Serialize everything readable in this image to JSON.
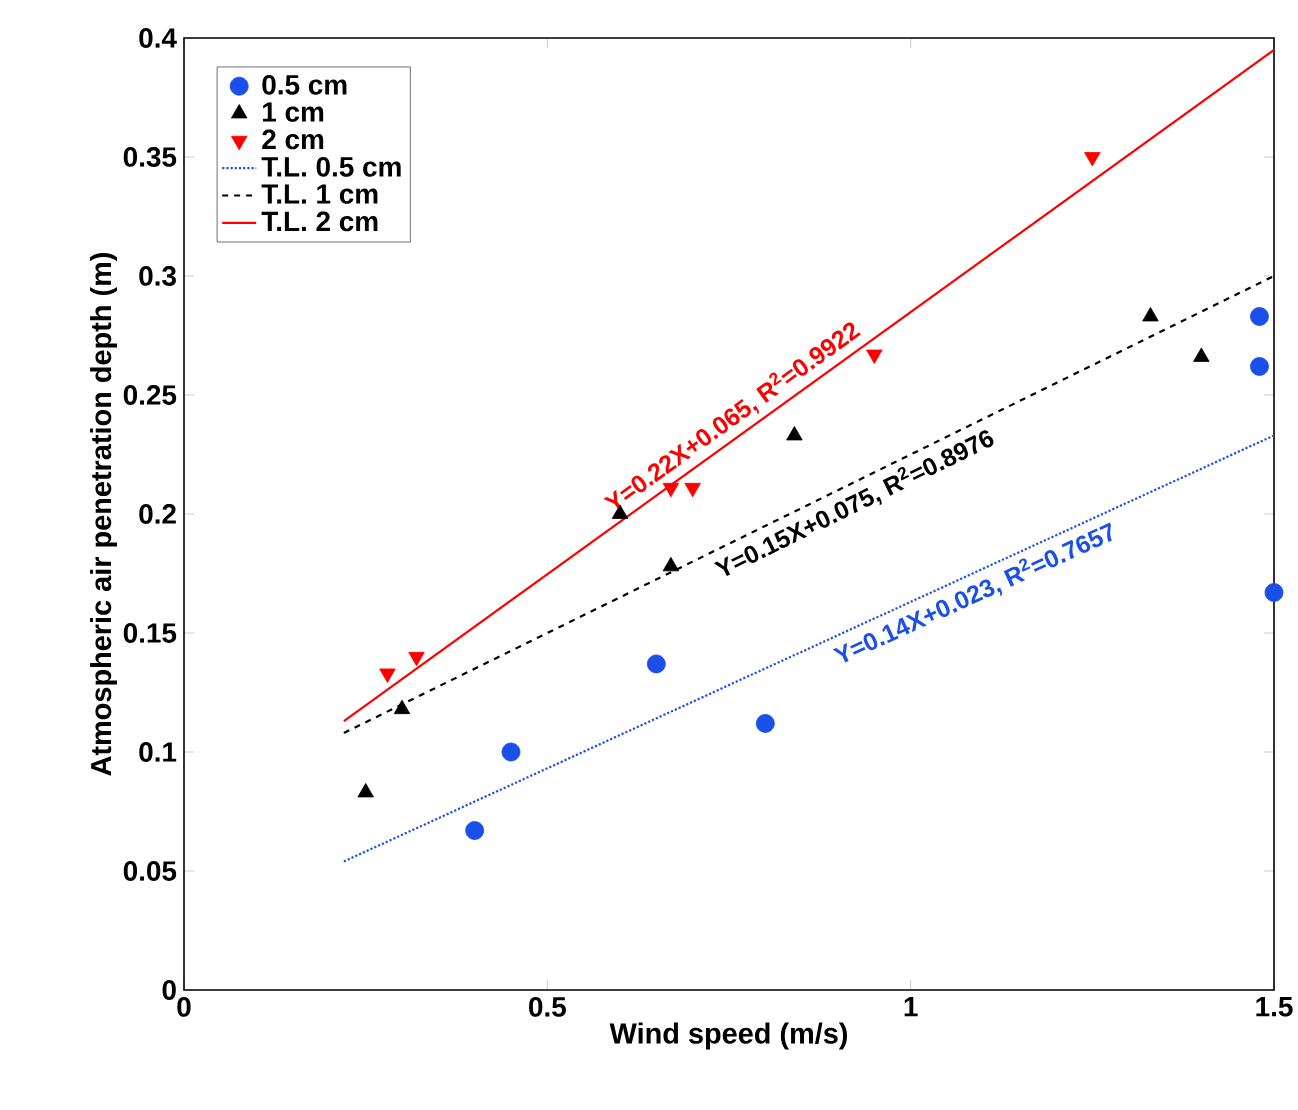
{
  "chart_data": {
    "type": "scatter",
    "xlabel": "Wind speed (m/s)",
    "ylabel": "Atmospheric air penetration depth (m)",
    "xlim": [
      0,
      1.5
    ],
    "ylim": [
      0,
      0.4
    ],
    "xticks": [
      0,
      0.5,
      1,
      1.5
    ],
    "yticks": [
      0,
      0.05,
      0.1,
      0.15,
      0.2,
      0.25,
      0.3,
      0.35,
      0.4
    ],
    "grid": false,
    "legend": "top left",
    "series": [
      {
        "name": "0.5 cm",
        "marker": "circle",
        "color": "#1a4fe8",
        "x": [
          0.4,
          0.45,
          0.65,
          0.8,
          1.48,
          1.48,
          1.5
        ],
        "values": [
          0.067,
          0.1,
          0.137,
          0.112,
          0.283,
          0.262,
          0.167
        ]
      },
      {
        "name": "1 cm",
        "marker": "triangle",
        "color": "#000000",
        "x": [
          0.25,
          0.3,
          0.6,
          0.67,
          0.84,
          1.33,
          1.4
        ],
        "values": [
          0.083,
          0.118,
          0.2,
          0.178,
          0.233,
          0.283,
          0.266
        ]
      },
      {
        "name": "2 cm",
        "marker": "triangle down",
        "color": "#ff0000",
        "x": [
          0.28,
          0.32,
          0.67,
          0.7,
          0.95,
          1.25
        ],
        "values": [
          0.133,
          0.14,
          0.211,
          0.211,
          0.267,
          0.35
        ]
      },
      {
        "name": "T.L. 0.5 cm",
        "type": "line",
        "marker": "none",
        "line_style": "dotted",
        "color": "#1a4fe8",
        "x": [
          0.22,
          1.5
        ],
        "values": [
          0.054,
          0.233
        ]
      },
      {
        "name": "T.L. 1 cm",
        "type": "line",
        "marker": "none",
        "line_style": "dashed",
        "color": "#000000",
        "x": [
          0.22,
          1.5
        ],
        "values": [
          0.108,
          0.3
        ]
      },
      {
        "name": "T.L. 2 cm",
        "type": "line",
        "marker": "none",
        "line_style": "solid",
        "color": "#ff0000",
        "x": [
          0.22,
          1.5
        ],
        "values": [
          0.113,
          0.395
        ]
      }
    ],
    "annotations": [
      "Y=0.22X+0.065, R$^{2}$=0.9922",
      "Y=0.15X+0.075, R$^{2}$=0.8976",
      "Y=0.14X+0.023, R$^{2}$=0.7657"
    ]
  }
}
